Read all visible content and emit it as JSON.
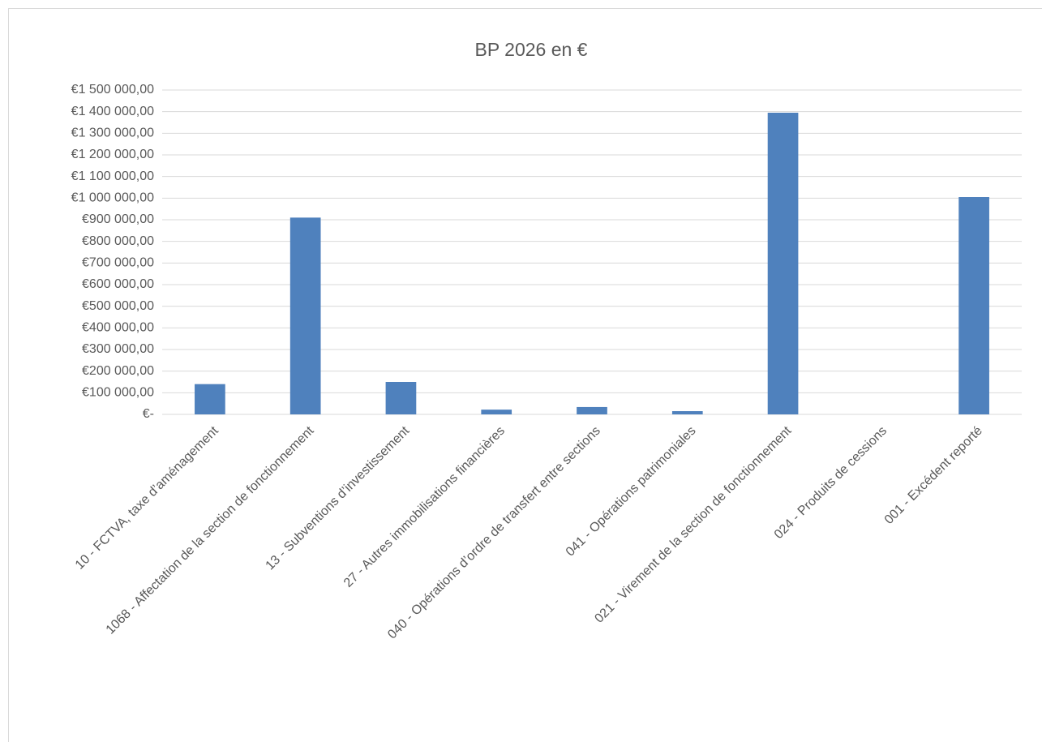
{
  "chart_data": {
    "type": "bar",
    "title": "BP 2026 en €",
    "categories": [
      "10 - FCTVA, taxe d’aménagement",
      "1068 - Affectation de la section de fonctionnement",
      "13 - Subventions d’investissement",
      "27 - Autres immobilisations financières",
      "040 - Opérations d’ordre de transfert entre sections",
      "041 - Opérations patrimoniales",
      "021 - Virement de la section de fonctionnement",
      "024 - Produits de cessions",
      "001 - Excédent reporté"
    ],
    "values": [
      140000,
      910000,
      150000,
      22000,
      34000,
      15000,
      1395000,
      0,
      1005000
    ],
    "color": "#4f81bd",
    "ylim": [
      0,
      1500000
    ],
    "yticks": [
      {
        "value": 0,
        "label": "€-"
      },
      {
        "value": 100000,
        "label": "€100 000,00"
      },
      {
        "value": 200000,
        "label": "€200 000,00"
      },
      {
        "value": 300000,
        "label": "€300 000,00"
      },
      {
        "value": 400000,
        "label": "€400 000,00"
      },
      {
        "value": 500000,
        "label": "€500 000,00"
      },
      {
        "value": 600000,
        "label": "€600 000,00"
      },
      {
        "value": 700000,
        "label": "€700 000,00"
      },
      {
        "value": 800000,
        "label": "€800 000,00"
      },
      {
        "value": 900000,
        "label": "€900 000,00"
      },
      {
        "value": 1000000,
        "label": "€1 000 000,00"
      },
      {
        "value": 1100000,
        "label": "€1 100 000,00"
      },
      {
        "value": 1200000,
        "label": "€1 200 000,00"
      },
      {
        "value": 1300000,
        "label": "€1 300 000,00"
      },
      {
        "value": 1400000,
        "label": "€1 400 000,00"
      },
      {
        "value": 1500000,
        "label": "€1 500 000,00"
      }
    ],
    "grid": true
  }
}
